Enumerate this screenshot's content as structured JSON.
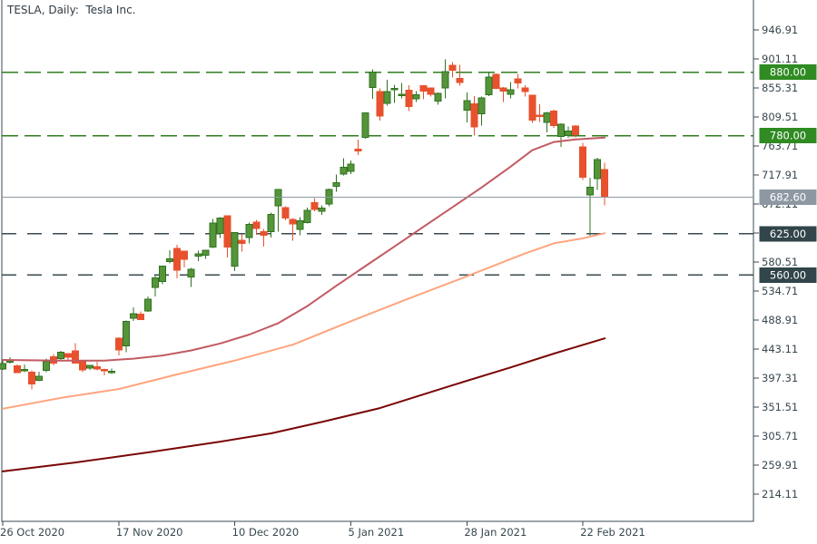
{
  "window": {
    "title": "TESLA, Daily:  Tesla Inc."
  },
  "chart_data": {
    "type": "candlestick",
    "symbol": "TESLA",
    "timeframe": "Daily",
    "company": "Tesla Inc.",
    "grid": false,
    "legend_position": "none",
    "y_axis": {
      "side": "right",
      "ticks": [
        946.91,
        901.11,
        855.31,
        809.51,
        763.71,
        717.91,
        672.11,
        626.31,
        580.51,
        534.71,
        488.91,
        443.11,
        397.31,
        351.51,
        305.71,
        259.91,
        214.11
      ],
      "range_top": 994.0,
      "range_bottom": 171.0
    },
    "x_axis": {
      "ticks": [
        {
          "label": "26 Oct 2020",
          "index": 0
        },
        {
          "label": "17 Nov 2020",
          "index": 16
        },
        {
          "label": "10 Dec 2020",
          "index": 32
        },
        {
          "label": "5 Jan 2021",
          "index": 48
        },
        {
          "label": "28 Jan 2021",
          "index": 64
        },
        {
          "label": "22 Feb 2021",
          "index": 80
        }
      ]
    },
    "candles_format": "open,high,low,close (one trading day per entry starting 26 Oct 2020)",
    "candles": [
      [
        411.63,
        425.76,
        410.0,
        420.28
      ],
      [
        423.76,
        430.5,
        420.1,
        424.68
      ],
      [
        416.62,
        418.6,
        406.02,
        406.02
      ],
      [
        409.96,
        418.71,
        406.36,
        410.83
      ],
      [
        406.9,
        409.75,
        379.11,
        388.04
      ],
      [
        394.0,
        406.98,
        392.3,
        400.51
      ],
      [
        409.73,
        427.77,
        406.69,
        423.9
      ],
      [
        430.62,
        435.4,
        417.1,
        420.98
      ],
      [
        428.3,
        440.0,
        424.0,
        438.09
      ],
      [
        436.1,
        436.57,
        424.28,
        429.95
      ],
      [
        440.0,
        452.5,
        420.0,
        421.26
      ],
      [
        425.0,
        425.0,
        406.75,
        410.36
      ],
      [
        413.0,
        418.28,
        410.45,
        417.13
      ],
      [
        415.0,
        423.0,
        409.5,
        411.76
      ],
      [
        410.85,
        412.53,
        401.66,
        408.5
      ],
      [
        408.09,
        412.44,
        403.67,
        408.09
      ],
      [
        460.17,
        462.0,
        433.01,
        441.61
      ],
      [
        448.35,
        488.0,
        438.0,
        486.64
      ],
      [
        492.0,
        508.61,
        487.57,
        499.27
      ],
      [
        497.99,
        502.5,
        489.06,
        489.61
      ],
      [
        503.5,
        526.0,
        501.79,
        521.85
      ],
      [
        540.4,
        559.99,
        526.2,
        555.38
      ],
      [
        550.06,
        574.0,
        545.37,
        574.0
      ],
      [
        581.16,
        598.78,
        578.45,
        585.76
      ],
      [
        602.21,
        607.8,
        554.51,
        567.6
      ],
      [
        597.59,
        597.85,
        572.22,
        584.76
      ],
      [
        556.96,
        571.46,
        541.21,
        568.82
      ],
      [
        590.02,
        598.05,
        582.0,
        593.38
      ],
      [
        591.01,
        599.04,
        585.5,
        599.04
      ],
      [
        604.48,
        648.79,
        603.05,
        641.76
      ],
      [
        625.51,
        651.5,
        618.5,
        649.88
      ],
      [
        653.69,
        654.32,
        588.0,
        604.48
      ],
      [
        574.37,
        627.75,
        566.34,
        627.07
      ],
      [
        615.01,
        624.0,
        596.8,
        609.99
      ],
      [
        619.0,
        642.75,
        610.2,
        639.83
      ],
      [
        643.29,
        646.9,
        623.8,
        633.25
      ],
      [
        628.26,
        632.5,
        605.0,
        622.77
      ],
      [
        628.19,
        658.82,
        619.5,
        655.9
      ],
      [
        668.9,
        695.0,
        628.54,
        695.0
      ],
      [
        666.24,
        668.5,
        646.07,
        649.86
      ],
      [
        648.0,
        649.88,
        614.23,
        640.34
      ],
      [
        632.2,
        651.5,
        622.57,
        645.98
      ],
      [
        642.99,
        666.09,
        641.0,
        661.77
      ],
      [
        674.51,
        681.4,
        660.8,
        663.69
      ],
      [
        661.0,
        669.9,
        655.0,
        665.99
      ],
      [
        672.0,
        696.6,
        668.36,
        694.78
      ],
      [
        699.99,
        718.72,
        691.12,
        705.67
      ],
      [
        719.46,
        744.49,
        717.19,
        729.77
      ],
      [
        723.66,
        740.84,
        719.2,
        735.11
      ],
      [
        758.49,
        774.0,
        749.1,
        755.98
      ],
      [
        777.63,
        816.99,
        775.2,
        816.04
      ],
      [
        856.0,
        884.49,
        838.39,
        880.02
      ],
      [
        849.4,
        854.43,
        803.62,
        811.19
      ],
      [
        831.0,
        868.0,
        827.34,
        849.44
      ],
      [
        852.76,
        860.47,
        832.0,
        854.41
      ],
      [
        843.39,
        863.0,
        838.75,
        845.0
      ],
      [
        852.0,
        859.9,
        819.1,
        826.16
      ],
      [
        837.8,
        850.0,
        833.0,
        844.55
      ],
      [
        858.74,
        859.5,
        837.28,
        850.45
      ],
      [
        855.0,
        855.72,
        841.42,
        844.99
      ],
      [
        834.31,
        848.0,
        828.62,
        846.64
      ],
      [
        855.0,
        900.4,
        838.82,
        880.8
      ],
      [
        891.38,
        895.9,
        871.6,
        883.09
      ],
      [
        870.35,
        891.5,
        858.66,
        864.16
      ],
      [
        820.0,
        848.0,
        801.0,
        835.43
      ],
      [
        830.0,
        842.41,
        780.1,
        793.53
      ],
      [
        814.29,
        842.0,
        795.56,
        839.81
      ],
      [
        844.68,
        880.5,
        842.2,
        872.79
      ],
      [
        877.02,
        878.08,
        853.06,
        854.69
      ],
      [
        855.0,
        856.5,
        833.42,
        849.99
      ],
      [
        845.0,
        864.77,
        838.97,
        852.23
      ],
      [
        869.67,
        877.77,
        854.75,
        863.42
      ],
      [
        855.12,
        859.8,
        841.75,
        849.46
      ],
      [
        843.64,
        844.82,
        800.02,
        804.82
      ],
      [
        812.44,
        829.88,
        801.73,
        811.66
      ],
      [
        801.26,
        817.33,
        785.33,
        816.12
      ],
      [
        818.96,
        821.0,
        792.44,
        796.22
      ],
      [
        779.09,
        799.84,
        762.01,
        798.15
      ],
      [
        780.0,
        794.77,
        776.29,
        787.38
      ],
      [
        795.0,
        796.79,
        777.37,
        781.3
      ],
      [
        762.61,
        768.5,
        710.2,
        714.5
      ],
      [
        686.44,
        713.75,
        620.0,
        698.84
      ],
      [
        711.85,
        745.0,
        694.17,
        742.02
      ],
      [
        726.15,
        737.21,
        670.1,
        682.6
      ]
    ],
    "moving_averages": [
      {
        "name": "ma-fast",
        "color": "#c25a62",
        "width": 2,
        "points": [
          [
            0,
            426
          ],
          [
            8,
            425
          ],
          [
            14,
            425
          ],
          [
            18,
            428
          ],
          [
            22,
            433
          ],
          [
            26,
            441
          ],
          [
            30,
            452
          ],
          [
            34,
            466
          ],
          [
            38,
            484
          ],
          [
            42,
            511
          ],
          [
            46,
            543
          ],
          [
            50,
            574
          ],
          [
            54,
            605
          ],
          [
            58,
            636
          ],
          [
            62,
            667
          ],
          [
            66,
            698
          ],
          [
            70,
            731
          ],
          [
            73,
            757
          ],
          [
            76,
            770
          ],
          [
            79,
            774
          ],
          [
            83,
            777
          ]
        ]
      },
      {
        "name": "ma-medium",
        "color": "#ffa47e",
        "width": 2,
        "points": [
          [
            0,
            349
          ],
          [
            8,
            366
          ],
          [
            16,
            380
          ],
          [
            24,
            403
          ],
          [
            32,
            425
          ],
          [
            40,
            450
          ],
          [
            48,
            487
          ],
          [
            56,
            523
          ],
          [
            64,
            558
          ],
          [
            72,
            594
          ],
          [
            76,
            610
          ],
          [
            80,
            618
          ],
          [
            83,
            626
          ]
        ]
      },
      {
        "name": "ma-slow",
        "color": "#7a0505",
        "width": 2,
        "points": [
          [
            0,
            250
          ],
          [
            10,
            264
          ],
          [
            20,
            280
          ],
          [
            30,
            297
          ],
          [
            37,
            310
          ],
          [
            44,
            328
          ],
          [
            52,
            350
          ],
          [
            62,
            386
          ],
          [
            70,
            414
          ],
          [
            76,
            436
          ],
          [
            83,
            460
          ]
        ]
      }
    ],
    "levels": [
      {
        "price": 880.0,
        "label": "880.00",
        "style": "dashed",
        "line_color": "#2e7d1e",
        "box_color": "#2f8b22"
      },
      {
        "price": 780.0,
        "label": "780.00",
        "style": "dashed",
        "line_color": "#2e7d1e",
        "box_color": "#2f8b22"
      },
      {
        "price": 682.6,
        "label": "682.60",
        "style": "solid",
        "line_color": "#8c99a1",
        "box_color": "#8d98a3"
      },
      {
        "price": 625.0,
        "label": "625.00",
        "style": "dashed",
        "line_color": "#3a4a52",
        "box_color": "#31454a"
      },
      {
        "price": 560.0,
        "label": "560.00",
        "style": "dashed",
        "line_color": "#3a4a52",
        "box_color": "#31454a"
      }
    ],
    "current_price": 682.6,
    "colors": {
      "bull_fill": "#55953a",
      "bull_border": "#2f711f",
      "bear_fill": "#e8512e",
      "bear_border": "#e8512e",
      "axis": "#3a4a54",
      "tick_text": "#37474f",
      "background": "#ffffff"
    }
  }
}
